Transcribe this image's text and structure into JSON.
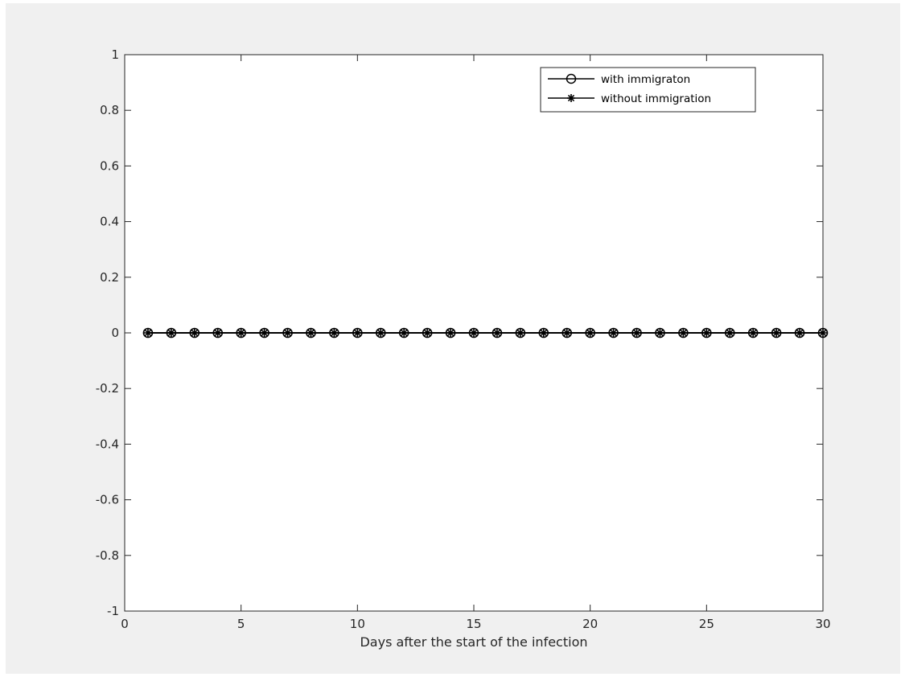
{
  "chart_data": {
    "type": "line",
    "title": "",
    "xlabel": "Days after the start of the infection",
    "ylabel": "",
    "xlim": [
      0,
      30
    ],
    "ylim": [
      -1,
      1
    ],
    "xticks": [
      0,
      5,
      10,
      15,
      20,
      25,
      30
    ],
    "yticks": [
      -1,
      -0.8,
      -0.6,
      -0.4,
      -0.2,
      0,
      0.2,
      0.4,
      0.6,
      0.8,
      1
    ],
    "xtick_labels": [
      "0",
      "5",
      "10",
      "15",
      "20",
      "25",
      "30"
    ],
    "ytick_labels": [
      "-1",
      "-0.8",
      "-0.6",
      "-0.4",
      "-0.2",
      "0",
      "0.2",
      "0.4",
      "0.6",
      "0.8",
      "1"
    ],
    "grid": false,
    "legend_position": "top-right",
    "x": [
      1,
      2,
      3,
      4,
      5,
      6,
      7,
      8,
      9,
      10,
      11,
      12,
      13,
      14,
      15,
      16,
      17,
      18,
      19,
      20,
      21,
      22,
      23,
      24,
      25,
      26,
      27,
      28,
      29,
      30
    ],
    "series": [
      {
        "name": "with immigraton",
        "marker": "circle",
        "color": "#000000",
        "values": [
          0,
          0,
          0,
          0,
          0,
          0,
          0,
          0,
          0,
          0,
          0,
          0,
          0,
          0,
          0,
          0,
          0,
          0,
          0,
          0,
          0,
          0,
          0,
          0,
          0,
          0,
          0,
          0,
          0,
          0
        ]
      },
      {
        "name": "without immigration",
        "marker": "star",
        "color": "#000000",
        "values": [
          0,
          0,
          0,
          0,
          0,
          0,
          0,
          0,
          0,
          0,
          0,
          0,
          0,
          0,
          0,
          0,
          0,
          0,
          0,
          0,
          0,
          0,
          0,
          0,
          0,
          0,
          0,
          0,
          0,
          0
        ]
      }
    ]
  },
  "colors": {
    "figure_background": "#f0f0f0",
    "axes_background": "#ffffff",
    "axes_color": "#262626",
    "line_color": "#000000"
  }
}
